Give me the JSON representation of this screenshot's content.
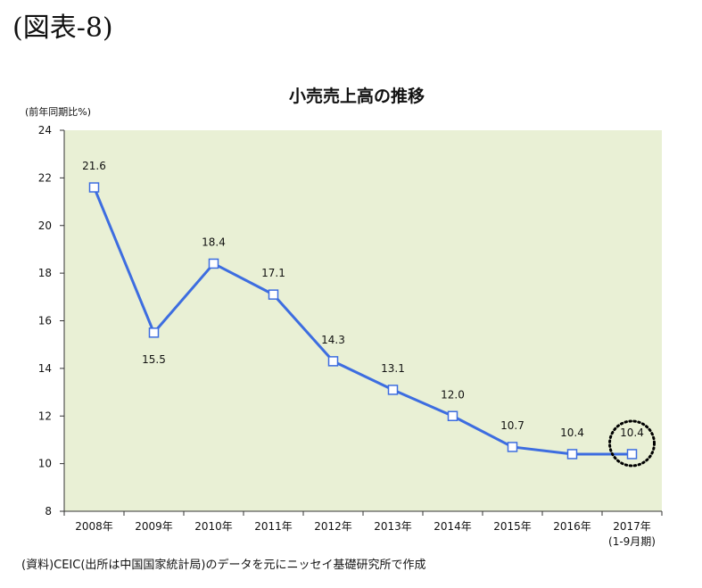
{
  "figure_label": "(図表-8)",
  "source_note": "(資料)CEIC(出所は中国国家統計局)のデータを元にニッセイ基礎研究所で作成",
  "chart_data": {
    "type": "line",
    "title": "小売売上高の推移",
    "ylabel": "(前年同期比%)",
    "xlabel": "",
    "categories": [
      "2008年",
      "2009年",
      "2010年",
      "2011年",
      "2012年",
      "2013年",
      "2014年",
      "2015年",
      "2016年",
      "2017年"
    ],
    "category_sublabels": [
      "",
      "",
      "",
      "",
      "",
      "",
      "",
      "",
      "",
      "(1-9月期)"
    ],
    "series": [
      {
        "values": [
          21.6,
          15.5,
          18.4,
          17.1,
          14.3,
          13.1,
          12.0,
          10.7,
          10.4,
          10.4
        ],
        "labels": [
          "21.6",
          "15.5",
          "18.4",
          "17.1",
          "14.3",
          "13.1",
          "12.0",
          "10.7",
          "10.4",
          "10.4"
        ]
      }
    ],
    "label_positions": [
      "above",
      "below",
      "above",
      "above",
      "above",
      "above",
      "above",
      "above",
      "above",
      "above"
    ],
    "highlighted_index": 9,
    "ylim": [
      8,
      24
    ],
    "yticks": [
      8,
      10,
      12,
      14,
      16,
      18,
      20,
      22,
      24
    ],
    "grid": false,
    "legend": "none",
    "colors": {
      "line": "#3d6de0",
      "plot_background": "#e9f0d5",
      "marker_fill": "#ffffff",
      "axis": "#333333",
      "highlight_ring": "#000000"
    }
  }
}
